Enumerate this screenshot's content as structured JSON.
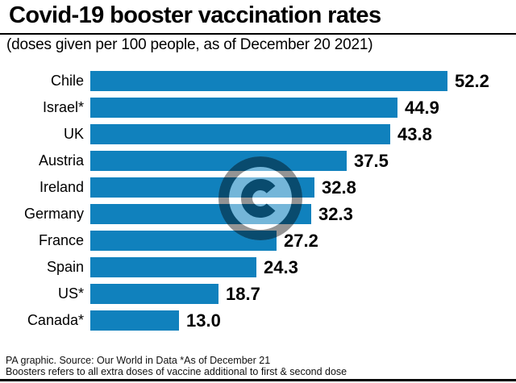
{
  "header": {
    "title": "Covid-19 booster vaccination rates",
    "subtitle": "(doses given per 100 people, as of December 20 2021)"
  },
  "chart_data": {
    "type": "bar",
    "orientation": "horizontal",
    "title": "Covid-19 booster vaccination rates",
    "subtitle": "(doses given per 100 people, as of December 20 2021)",
    "categories": [
      "Chile",
      "Israel*",
      "UK",
      "Austria",
      "Ireland",
      "Germany",
      "France",
      "Spain",
      "US*",
      "Canada*"
    ],
    "values": [
      52.2,
      44.9,
      43.8,
      37.5,
      32.8,
      32.3,
      27.2,
      24.3,
      18.7,
      13.0
    ],
    "value_labels": [
      "52.2",
      "44.9",
      "43.8",
      "37.5",
      "32.8",
      "32.3",
      "27.2",
      "24.3",
      "18.7",
      "13.0"
    ],
    "xlim": [
      0,
      52.2
    ],
    "grid": false,
    "legend": false,
    "bar_color": "#1081bd",
    "value_label_position": "end-of-bar"
  },
  "watermark": {
    "symbol": "©"
  },
  "footer": {
    "line1": "PA graphic. Source: Our World in Data *As of December 21",
    "line2": "Boosters refers to all extra doses of vaccine additional to first & second dose"
  }
}
